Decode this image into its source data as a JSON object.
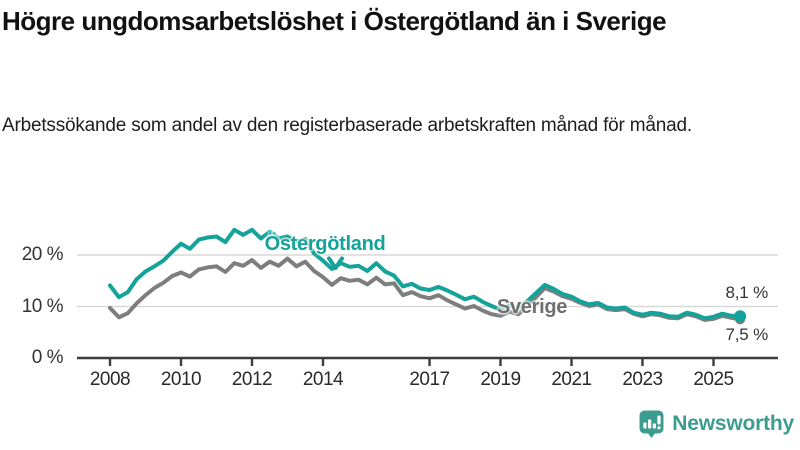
{
  "title": "Högre ungdomsarbetslöshet i Östergötland än i Sverige",
  "subtitle": "Arbetssökande som andel av den registerbaserade arbetskraften månad för månad.",
  "branding": {
    "logo_text": "Newsworthy",
    "logo_icon": "bar-chart-speech-bubble-icon"
  },
  "colors": {
    "ostergotland": "#14a39a",
    "sverige": "#7e7e7e",
    "grid": "#d8d8d8",
    "axis": "#3d3d3d",
    "logo": "#3d9c90",
    "background": "#ffffff"
  },
  "chart_data": {
    "type": "line",
    "x_start": 2008,
    "x_step_years": 0.25,
    "x_tick_years": [
      2008,
      2010,
      2012,
      2014,
      2017,
      2019,
      2021,
      2023,
      2025
    ],
    "x_tick_labels": [
      "2008",
      "2010",
      "2012",
      "2014",
      "2017",
      "2019",
      "2021",
      "2023",
      "2025"
    ],
    "y_ticks": [
      {
        "value": 0,
        "label": "0 %"
      },
      {
        "value": 10,
        "label": "10 %"
      },
      {
        "value": 20,
        "label": "20 %"
      }
    ],
    "ylim": [
      0,
      27
    ],
    "grid": "horizontal-only",
    "legend_position": "inline-labels",
    "series": [
      {
        "name": "Östergötland",
        "color": "#14a39a",
        "end_label": "8,1 %",
        "end_value": 8.1,
        "values": [
          14.1,
          11.8,
          12.8,
          15.3,
          16.8,
          17.8,
          18.9,
          20.6,
          22.2,
          21.2,
          23.0,
          23.4,
          23.6,
          22.5,
          24.9,
          23.9,
          24.9,
          23.2,
          24.5,
          23.2,
          23.6,
          22.6,
          23.1,
          20.3,
          18.9,
          17.3,
          18.4,
          17.7,
          17.9,
          16.9,
          18.4,
          16.8,
          16.0,
          13.9,
          14.4,
          13.5,
          13.2,
          13.8,
          13.1,
          12.3,
          11.4,
          11.9,
          10.9,
          10.1,
          9.4,
          10.2,
          9.7,
          11.0,
          12.6,
          14.2,
          13.4,
          12.4,
          11.9,
          11.0,
          10.4,
          10.7,
          9.8,
          9.6,
          9.8,
          8.8,
          8.4,
          8.8,
          8.6,
          8.1,
          8.0,
          8.8,
          8.4,
          7.7,
          8.0,
          8.6,
          8.2,
          8.1
        ]
      },
      {
        "name": "Sverige",
        "color": "#7e7e7e",
        "end_label": "7,5 %",
        "end_value": 7.5,
        "values": [
          9.7,
          7.9,
          8.7,
          10.6,
          12.2,
          13.6,
          14.6,
          15.9,
          16.6,
          15.8,
          17.2,
          17.6,
          17.8,
          16.7,
          18.4,
          17.9,
          19.0,
          17.5,
          18.7,
          17.9,
          19.3,
          17.8,
          18.7,
          16.9,
          15.7,
          14.2,
          15.5,
          15.0,
          15.2,
          14.3,
          15.6,
          14.3,
          14.5,
          12.2,
          12.8,
          12.0,
          11.6,
          12.2,
          11.2,
          10.4,
          9.6,
          10.1,
          9.2,
          8.5,
          8.2,
          9.0,
          8.5,
          10.0,
          11.8,
          13.6,
          12.9,
          12.0,
          11.5,
          10.7,
          10.1,
          10.4,
          9.5,
          9.3,
          9.5,
          8.6,
          8.1,
          8.5,
          8.3,
          7.8,
          7.7,
          8.5,
          8.1,
          7.4,
          7.6,
          8.2,
          7.8,
          7.5
        ]
      }
    ]
  }
}
